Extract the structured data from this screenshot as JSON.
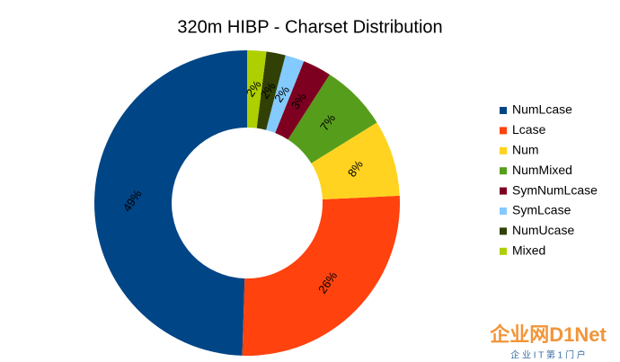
{
  "chart_data": {
    "type": "donut",
    "title": "320m HIBP - Charset Distribution",
    "categories": [
      "NumLcase",
      "Lcase",
      "Num",
      "NumMixed",
      "SymNumLcase",
      "SymLcase",
      "NumUcase",
      "Mixed"
    ],
    "values": [
      49,
      26,
      8,
      7,
      3,
      2,
      2,
      2
    ],
    "value_labels": [
      "49%",
      "26%",
      "8%",
      "7%",
      "3%",
      "2%",
      "2%",
      "2%"
    ],
    "colors": [
      "#004586",
      "#ff420e",
      "#ffd320",
      "#579d1c",
      "#7e0021",
      "#83caff",
      "#314004",
      "#aecf00"
    ],
    "legend": "right"
  },
  "watermark": {
    "brand": "企业网D1Net",
    "tagline": "企 业 I T 第 1 门 户"
  }
}
